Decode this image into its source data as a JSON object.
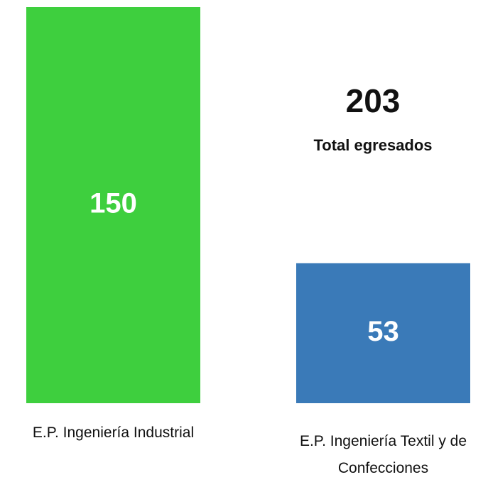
{
  "chart_data": {
    "type": "bar",
    "categories": [
      "E.P. Ingeniería Industrial",
      "E.P. Ingeniería Textil y de Confecciones"
    ],
    "values": [
      150,
      53
    ],
    "colors": [
      "#3ecf3e",
      "#3a7ab8"
    ],
    "ylim": [
      0,
      150
    ],
    "total": {
      "value": 203,
      "label": "Total egresados"
    }
  }
}
